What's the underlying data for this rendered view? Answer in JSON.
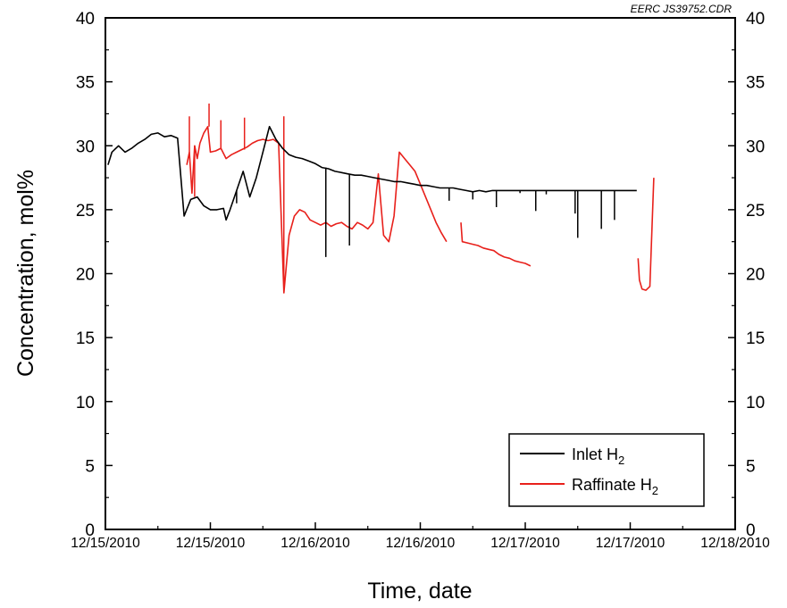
{
  "chart_data": {
    "type": "line",
    "watermark": "EERC JS39752.CDR",
    "xlabel": "Time, date",
    "ylabel": "Concentration, mol%",
    "ylim": [
      0,
      40
    ],
    "y_ticks": [
      "0",
      "5",
      "10",
      "15",
      "20",
      "25",
      "30",
      "35",
      "40"
    ],
    "right_y_ticks": [
      "0",
      "5",
      "10",
      "15",
      "20",
      "25",
      "30",
      "35",
      "40"
    ],
    "x_tick_labels": [
      "12/15/2010",
      "12/15/2010",
      "12/16/2010",
      "12/16/2010",
      "12/17/2010",
      "12/17/2010",
      "12/18/2010"
    ],
    "grid": false,
    "legend_position": "bottom-right",
    "series": [
      {
        "name": "Inlet H",
        "name_sub": "2",
        "color": "#000000",
        "x": [
          0.1,
          0.25,
          0.5,
          0.75,
          1.0,
          1.25,
          1.5,
          1.75,
          2.0,
          2.25,
          2.5,
          2.75,
          3.0,
          3.25,
          3.5,
          3.75,
          4.0,
          4.25,
          4.5,
          4.6,
          4.75,
          5.0,
          5.25,
          5.5,
          5.75,
          6.0,
          6.25,
          6.5,
          6.75,
          7.0,
          7.25,
          7.5,
          7.75,
          8.0,
          8.25,
          8.5,
          8.75,
          9.0,
          9.25,
          9.5,
          9.75,
          10.0,
          10.25,
          10.5,
          10.75,
          11.0,
          11.25,
          11.5,
          11.75,
          12.0,
          12.25,
          12.5,
          12.75,
          13.0,
          13.25,
          13.5,
          13.75,
          14.0,
          14.25,
          14.5,
          14.75,
          15.0,
          15.25,
          15.5,
          15.75,
          16.0,
          16.25,
          16.5,
          16.75,
          17.0,
          17.25,
          17.5,
          17.75,
          18.0,
          18.25,
          18.5,
          18.75,
          19.0,
          19.25,
          19.5,
          19.75,
          20.0,
          20.25
        ],
        "y": [
          28.5,
          29.5,
          30.0,
          29.5,
          29.8,
          30.2,
          30.5,
          30.9,
          31.0,
          30.7,
          30.8,
          30.6,
          24.5,
          25.8,
          26.0,
          25.3,
          25.0,
          25.0,
          25.1,
          24.2,
          25.0,
          26.5,
          28.0,
          26.0,
          27.5,
          29.5,
          31.5,
          30.5,
          29.8,
          29.3,
          29.1,
          29.0,
          28.8,
          28.6,
          28.3,
          28.2,
          28.0,
          27.9,
          27.8,
          27.7,
          27.7,
          27.6,
          27.5,
          27.4,
          27.3,
          27.2,
          27.2,
          27.1,
          27.0,
          26.9,
          26.9,
          26.8,
          26.7,
          26.7,
          26.7,
          26.6,
          26.5,
          26.4,
          26.5,
          26.4,
          26.5,
          26.5,
          26.5,
          26.5,
          26.5,
          26.5,
          26.5,
          26.5,
          26.5,
          26.5,
          26.5,
          26.5,
          26.5,
          26.5,
          26.5,
          26.5,
          26.5,
          26.5,
          26.5,
          26.5,
          26.5,
          26.5,
          26.5
        ],
        "spikes": [
          {
            "x": 5.0,
            "to": 25.5
          },
          {
            "x": 8.4,
            "to": 21.3
          },
          {
            "x": 9.3,
            "to": 22.2
          },
          {
            "x": 13.1,
            "to": 25.7
          },
          {
            "x": 14.0,
            "to": 25.8
          },
          {
            "x": 14.9,
            "to": 25.2
          },
          {
            "x": 15.8,
            "to": 26.3
          },
          {
            "x": 16.4,
            "to": 24.9
          },
          {
            "x": 16.8,
            "to": 26.2
          },
          {
            "x": 17.9,
            "to": 24.7
          },
          {
            "x": 18.0,
            "to": 22.8
          },
          {
            "x": 18.9,
            "to": 23.5
          },
          {
            "x": 19.4,
            "to": 24.2
          }
        ]
      },
      {
        "name": "Raffinate H",
        "name_sub": "2",
        "color": "#e8201b",
        "segments": [
          {
            "x": [
              3.1,
              3.2,
              3.3,
              3.4,
              3.5,
              3.6,
              3.75,
              3.9,
              4.0,
              4.2,
              4.4,
              4.6,
              4.8,
              5.0,
              5.2,
              5.4,
              5.6,
              5.8,
              6.0,
              6.2,
              6.4,
              6.6,
              6.8,
              7.0,
              7.2,
              7.4,
              7.6,
              7.8,
              8.0,
              8.2,
              8.4,
              8.6,
              8.8,
              9.0,
              9.2,
              9.4,
              9.6,
              9.8,
              10.0,
              10.2,
              10.4,
              10.6,
              10.8,
              11.0,
              11.2,
              11.4,
              11.6,
              11.8,
              12.0,
              12.2,
              12.4,
              12.6,
              12.8,
              13.0
            ],
            "y": [
              28.5,
              29.5,
              26.3,
              30.0,
              29.0,
              30.2,
              31.0,
              31.5,
              29.5,
              29.6,
              29.8,
              29.0,
              29.3,
              29.5,
              29.7,
              29.9,
              30.2,
              30.4,
              30.5,
              30.4,
              30.5,
              30.2,
              18.5,
              23.0,
              24.5,
              25.0,
              24.8,
              24.2,
              24.0,
              23.8,
              24.0,
              23.7,
              23.9,
              24.0,
              23.7,
              23.5,
              24.0,
              23.8,
              23.5,
              24.0,
              27.8,
              23.0,
              22.5,
              24.5,
              29.5,
              29.0,
              28.5,
              28.0,
              27.0,
              26.0,
              25.0,
              24.0,
              23.2,
              22.5
            ]
          },
          {
            "x": [
              13.55,
              13.6,
              13.8,
              14.0,
              14.2,
              14.4,
              14.6,
              14.8,
              15.0,
              15.2,
              15.4,
              15.6,
              15.8,
              16.0,
              16.2
            ],
            "y": [
              24.0,
              22.5,
              22.4,
              22.3,
              22.2,
              22.0,
              21.9,
              21.8,
              21.5,
              21.3,
              21.2,
              21.0,
              20.9,
              20.8,
              20.6
            ]
          },
          {
            "x": [
              20.3,
              20.35,
              20.45,
              20.6,
              20.75,
              20.9
            ],
            "y": [
              21.2,
              19.5,
              18.8,
              18.7,
              19.0,
              27.5
            ]
          }
        ],
        "spikes": [
          {
            "x": 3.2,
            "to": 32.3
          },
          {
            "x": 3.4,
            "to": 26.0
          },
          {
            "x": 3.95,
            "to": 33.3
          },
          {
            "x": 4.4,
            "to": 32.0
          },
          {
            "x": 5.3,
            "to": 32.2
          },
          {
            "x": 6.8,
            "to": 32.3
          }
        ]
      }
    ]
  }
}
